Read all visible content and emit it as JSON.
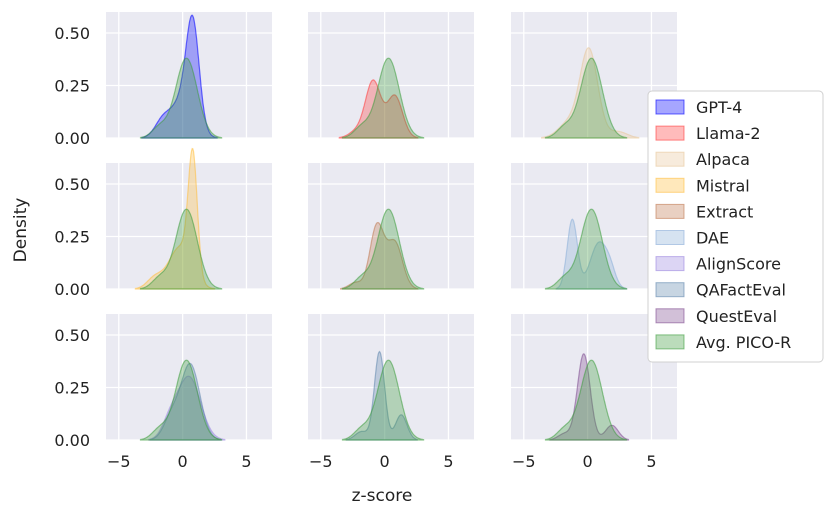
{
  "chart_data": {
    "type": "area",
    "kind": "kde-density-grid",
    "xlabel": "z-score",
    "ylabel": "Density",
    "xlim": [
      -6.0,
      7.0
    ],
    "ylim": [
      0.0,
      0.6
    ],
    "xticks": [
      -5,
      0,
      5
    ],
    "xtick_labels": [
      "−5",
      "0",
      "5"
    ],
    "yticks": [
      0.0,
      0.25,
      0.5
    ],
    "ytick_labels": [
      "0.00",
      "0.25",
      "0.50"
    ],
    "grid": true,
    "legend_position": "right",
    "legend": [
      {
        "name": "GPT-4",
        "color": "#0000ff"
      },
      {
        "name": "Llama-2",
        "color": "#ff3b3b"
      },
      {
        "name": "Alpaca",
        "color": "#e8c79a"
      },
      {
        "name": "Mistral",
        "color": "#ffbe3d"
      },
      {
        "name": "Extract",
        "color": "#c07850"
      },
      {
        "name": "DAE",
        "color": "#8aaed8"
      },
      {
        "name": "AlignScore",
        "color": "#9b86e0"
      },
      {
        "name": "QAFactEval",
        "color": "#5f86ad"
      },
      {
        "name": "QuestEval",
        "color": "#7e4a8f"
      },
      {
        "name": "Avg. PICO-R",
        "color": "#3c9c3c"
      }
    ],
    "panels": [
      {
        "series": [
          {
            "name": "GPT-4",
            "peaks": [
              [
                -1.6,
                0.07,
                0.6
              ],
              [
                0.8,
                0.46,
                0.5
              ],
              [
                0.0,
                0.18,
                0.9
              ]
            ]
          },
          {
            "name": "Avg. PICO-R",
            "peaks": [
              [
                0.3,
                0.38,
                0.85
              ],
              [
                -1.8,
                0.05,
                0.6
              ]
            ]
          }
        ]
      },
      {
        "series": [
          {
            "name": "Llama-2",
            "peaks": [
              [
                -0.9,
                0.27,
                0.6
              ],
              [
                0.8,
                0.2,
                0.6
              ],
              [
                -2.2,
                0.03,
                0.6
              ]
            ]
          },
          {
            "name": "Avg. PICO-R",
            "peaks": [
              [
                0.3,
                0.38,
                0.85
              ],
              [
                -1.8,
                0.05,
                0.6
              ]
            ]
          }
        ]
      },
      {
        "series": [
          {
            "name": "Alpaca",
            "peaks": [
              [
                0.1,
                0.42,
                0.7
              ],
              [
                -1.5,
                0.07,
                0.8
              ],
              [
                2.4,
                0.03,
                0.7
              ]
            ]
          },
          {
            "name": "Avg. PICO-R",
            "peaks": [
              [
                0.3,
                0.38,
                0.85
              ],
              [
                -1.8,
                0.05,
                0.6
              ]
            ]
          }
        ]
      },
      {
        "series": [
          {
            "name": "Mistral",
            "peaks": [
              [
                0.8,
                0.56,
                0.35
              ],
              [
                -0.2,
                0.2,
                0.9
              ],
              [
                -2.2,
                0.05,
                0.6
              ]
            ]
          },
          {
            "name": "Avg. PICO-R",
            "peaks": [
              [
                0.3,
                0.38,
                0.85
              ],
              [
                -1.8,
                0.05,
                0.6
              ]
            ]
          }
        ]
      },
      {
        "series": [
          {
            "name": "Extract",
            "peaks": [
              [
                -0.6,
                0.3,
                0.55
              ],
              [
                0.8,
                0.22,
                0.6
              ],
              [
                -2.3,
                0.03,
                0.5
              ]
            ]
          },
          {
            "name": "Avg. PICO-R",
            "peaks": [
              [
                0.3,
                0.38,
                0.85
              ],
              [
                -1.8,
                0.05,
                0.6
              ]
            ]
          }
        ]
      },
      {
        "series": [
          {
            "name": "DAE",
            "peaks": [
              [
                -1.2,
                0.33,
                0.4
              ],
              [
                0.9,
                0.22,
                0.7
              ],
              [
                1.8,
                0.05,
                0.4
              ]
            ]
          },
          {
            "name": "Avg. PICO-R",
            "peaks": [
              [
                0.3,
                0.38,
                0.85
              ],
              [
                -1.8,
                0.05,
                0.6
              ]
            ]
          }
        ]
      },
      {
        "series": [
          {
            "name": "AlignScore",
            "peaks": [
              [
                0.5,
                0.3,
                0.9
              ],
              [
                -1.0,
                0.08,
                0.6
              ]
            ]
          },
          {
            "name": "QAFactEval",
            "peaks": [
              [
                0.6,
                0.36,
                0.75
              ],
              [
                -0.9,
                0.1,
                0.6
              ]
            ]
          },
          {
            "name": "Avg. PICO-R",
            "peaks": [
              [
                0.3,
                0.38,
                0.85
              ],
              [
                -1.8,
                0.05,
                0.6
              ]
            ]
          }
        ]
      },
      {
        "series": [
          {
            "name": "QAFactEval",
            "peaks": [
              [
                -0.4,
                0.42,
                0.4
              ],
              [
                1.3,
                0.12,
                0.45
              ],
              [
                -1.8,
                0.04,
                0.5
              ]
            ]
          },
          {
            "name": "Avg. PICO-R",
            "peaks": [
              [
                0.3,
                0.38,
                0.85
              ],
              [
                -1.8,
                0.05,
                0.6
              ]
            ]
          }
        ]
      },
      {
        "series": [
          {
            "name": "QuestEval",
            "peaks": [
              [
                -0.3,
                0.41,
                0.5
              ],
              [
                1.9,
                0.07,
                0.5
              ],
              [
                -1.8,
                0.03,
                0.5
              ]
            ]
          },
          {
            "name": "Avg. PICO-R",
            "peaks": [
              [
                0.3,
                0.38,
                0.85
              ],
              [
                -1.8,
                0.05,
                0.6
              ]
            ]
          }
        ]
      }
    ]
  }
}
